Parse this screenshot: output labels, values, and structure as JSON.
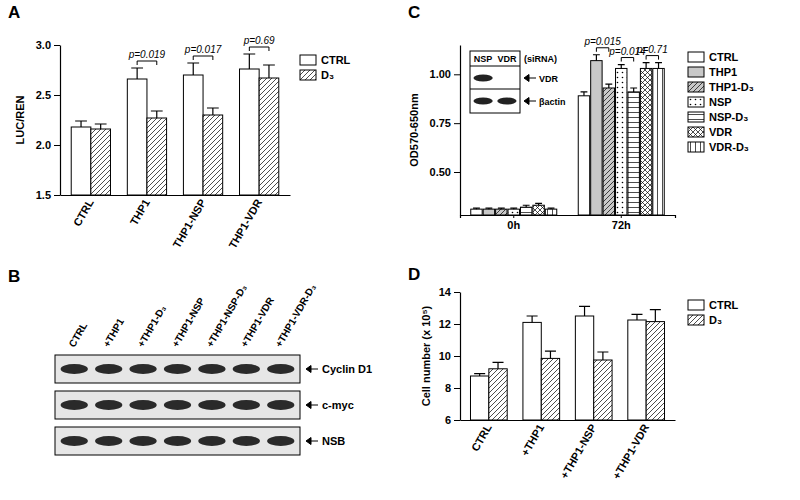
{
  "chart_data": [
    {
      "type": "bar",
      "title": "A",
      "ylabel": "LUC/REN",
      "categories": [
        "CTRL",
        "THP1",
        "THP1-NSP",
        "THP1-VDR"
      ],
      "series": [
        {
          "name": "CTRL",
          "color": "#ffffff",
          "values": [
            2.18,
            2.66,
            2.7,
            2.76
          ],
          "errors": [
            0.06,
            0.11,
            0.12,
            0.15
          ]
        },
        {
          "name": "D₃",
          "color": "#ffffff",
          "values": [
            2.16,
            2.27,
            2.3,
            2.67
          ],
          "errors": [
            0.05,
            0.07,
            0.07,
            0.13
          ]
        }
      ],
      "ylim": [
        1.5,
        3
      ],
      "yticks": [
        1.5,
        {
          "value": 2,
          "label": "2.0"
        },
        2.5,
        {
          "value": 3,
          "label": "3.0"
        }
      ],
      "legend": "right",
      "annotations": [
        {
          "text": "p=0.019",
          "category": 1
        },
        {
          "text": "p=0.017",
          "category": 2
        },
        {
          "text": "p=0.69",
          "category": 3
        }
      ]
    },
    {
      "type": "bar",
      "title": "C",
      "ylabel": "OD570-650nm",
      "categories": [
        "0h",
        "72h"
      ],
      "series": [
        {
          "name": "CTRL",
          "color": "#ffffff",
          "values": [
            0.31,
            0.89
          ],
          "errors": [
            0.005,
            0.02
          ]
        },
        {
          "name": "THP1",
          "color": "#c8c8c8",
          "values": [
            0.31,
            1.07
          ],
          "errors": [
            0.005,
            0.03
          ]
        },
        {
          "name": "THP1-D₃",
          "color": "#c8c8c8",
          "values": [
            0.31,
            0.93
          ],
          "errors": [
            0.005,
            0.02
          ]
        },
        {
          "name": "NSP",
          "color": "#ffffff",
          "values": [
            0.31,
            1.03
          ],
          "errors": [
            0.005,
            0.02
          ]
        },
        {
          "name": "NSP-D₃",
          "color": "#ffffff",
          "values": [
            0.32,
            0.91
          ],
          "errors": [
            0.01,
            0.02
          ]
        },
        {
          "name": "VDR",
          "color": "#ffffff",
          "values": [
            0.33,
            1.03
          ],
          "errors": [
            0.01,
            0.03
          ]
        },
        {
          "name": "VDR-D₃",
          "color": "#ffffff",
          "values": [
            0.31,
            1.03
          ],
          "errors": [
            0.005,
            0.03
          ]
        }
      ],
      "ylim": [
        0.28,
        1.15
      ],
      "yticks": [
        {
          "value": 0.5,
          "label": "0.50"
        },
        0.75,
        {
          "value": 1,
          "label": "1.00"
        }
      ],
      "legend": "right",
      "annotations": [
        {
          "text": "p=0.015",
          "category": 1,
          "series": [
            1,
            2
          ]
        },
        {
          "text": "p=0.014",
          "category": 1,
          "series": [
            3,
            4
          ]
        },
        {
          "text": "p=0.71",
          "category": 1,
          "series": [
            5,
            6
          ]
        }
      ],
      "inset": {
        "lanes": [
          "NSP",
          "VDR"
        ],
        "note": "(siRNA)",
        "bands": [
          "VDR",
          "βactin"
        ]
      }
    },
    {
      "type": "bar",
      "title": "D",
      "ylabel": "Cell number (x 10⁵)",
      "categories": [
        "CTRL",
        "+THP1",
        "+THP1-NSP",
        "+THP1-VDR"
      ],
      "series": [
        {
          "name": "CTRL",
          "color": "#ffffff",
          "values": [
            8.75,
            12.1,
            12.5,
            12.25
          ],
          "errors": [
            0.15,
            0.4,
            0.6,
            0.35
          ]
        },
        {
          "name": "D₃",
          "color": "#ffffff",
          "values": [
            9.2,
            9.85,
            9.75,
            12.15
          ],
          "errors": [
            0.4,
            0.45,
            0.5,
            0.75
          ]
        }
      ],
      "ylim": [
        6,
        14
      ],
      "yticks": [
        6,
        8,
        10,
        12,
        14
      ],
      "legend": "top right"
    }
  ],
  "blot": {
    "title": "B",
    "lanes": [
      "CTRL",
      "+THP1",
      "+THP1-D₃",
      "+THP1-NSP",
      "+THP1-NSP-D₃",
      "+THP1-VDR",
      "+THP1-VDR-D₃"
    ],
    "bands": [
      "Cyclin D1",
      "c-myc",
      "NSB"
    ]
  }
}
